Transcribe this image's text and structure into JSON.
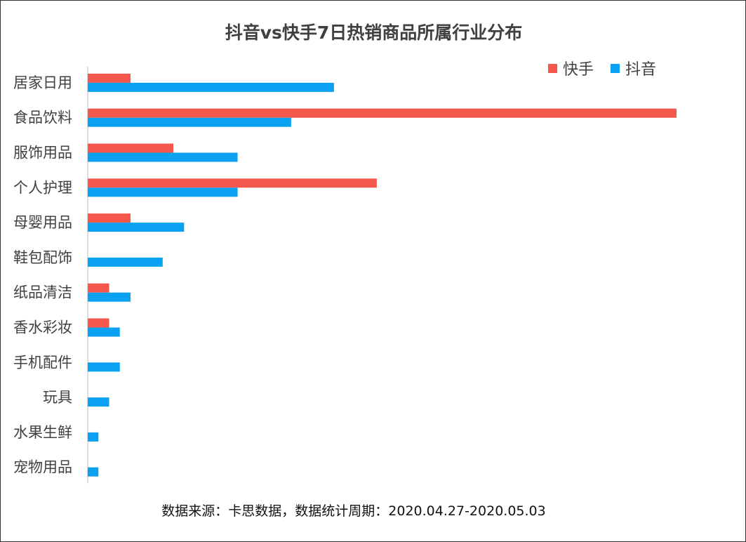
{
  "chart_data": {
    "type": "bar",
    "orientation": "horizontal",
    "title": "抖音vs快手7日热销商品所属行业分布",
    "categories": [
      "居家日用",
      "食品饮料",
      "服饰用品",
      "个人护理",
      "母婴用品",
      "鞋包配饰",
      "纸品清洁",
      "香水彩妆",
      "手机配件",
      "玩具",
      "水果生鲜",
      "宠物用品"
    ],
    "series": [
      {
        "name": "快手",
        "color": "#F4574B",
        "values": [
          4,
          55,
          8,
          27,
          4,
          0,
          2,
          2,
          0,
          0,
          0,
          0
        ]
      },
      {
        "name": "抖音",
        "color": "#0BA1F2",
        "values": [
          23,
          19,
          14,
          14,
          9,
          7,
          4,
          3,
          3,
          2,
          1,
          1
        ]
      }
    ],
    "xlim": [
      0,
      55
    ],
    "grid": false,
    "legend_position": "top-right",
    "source_note": "数据来源：卡思数据，数据统计周期：2020.04.27-2020.05.03"
  }
}
